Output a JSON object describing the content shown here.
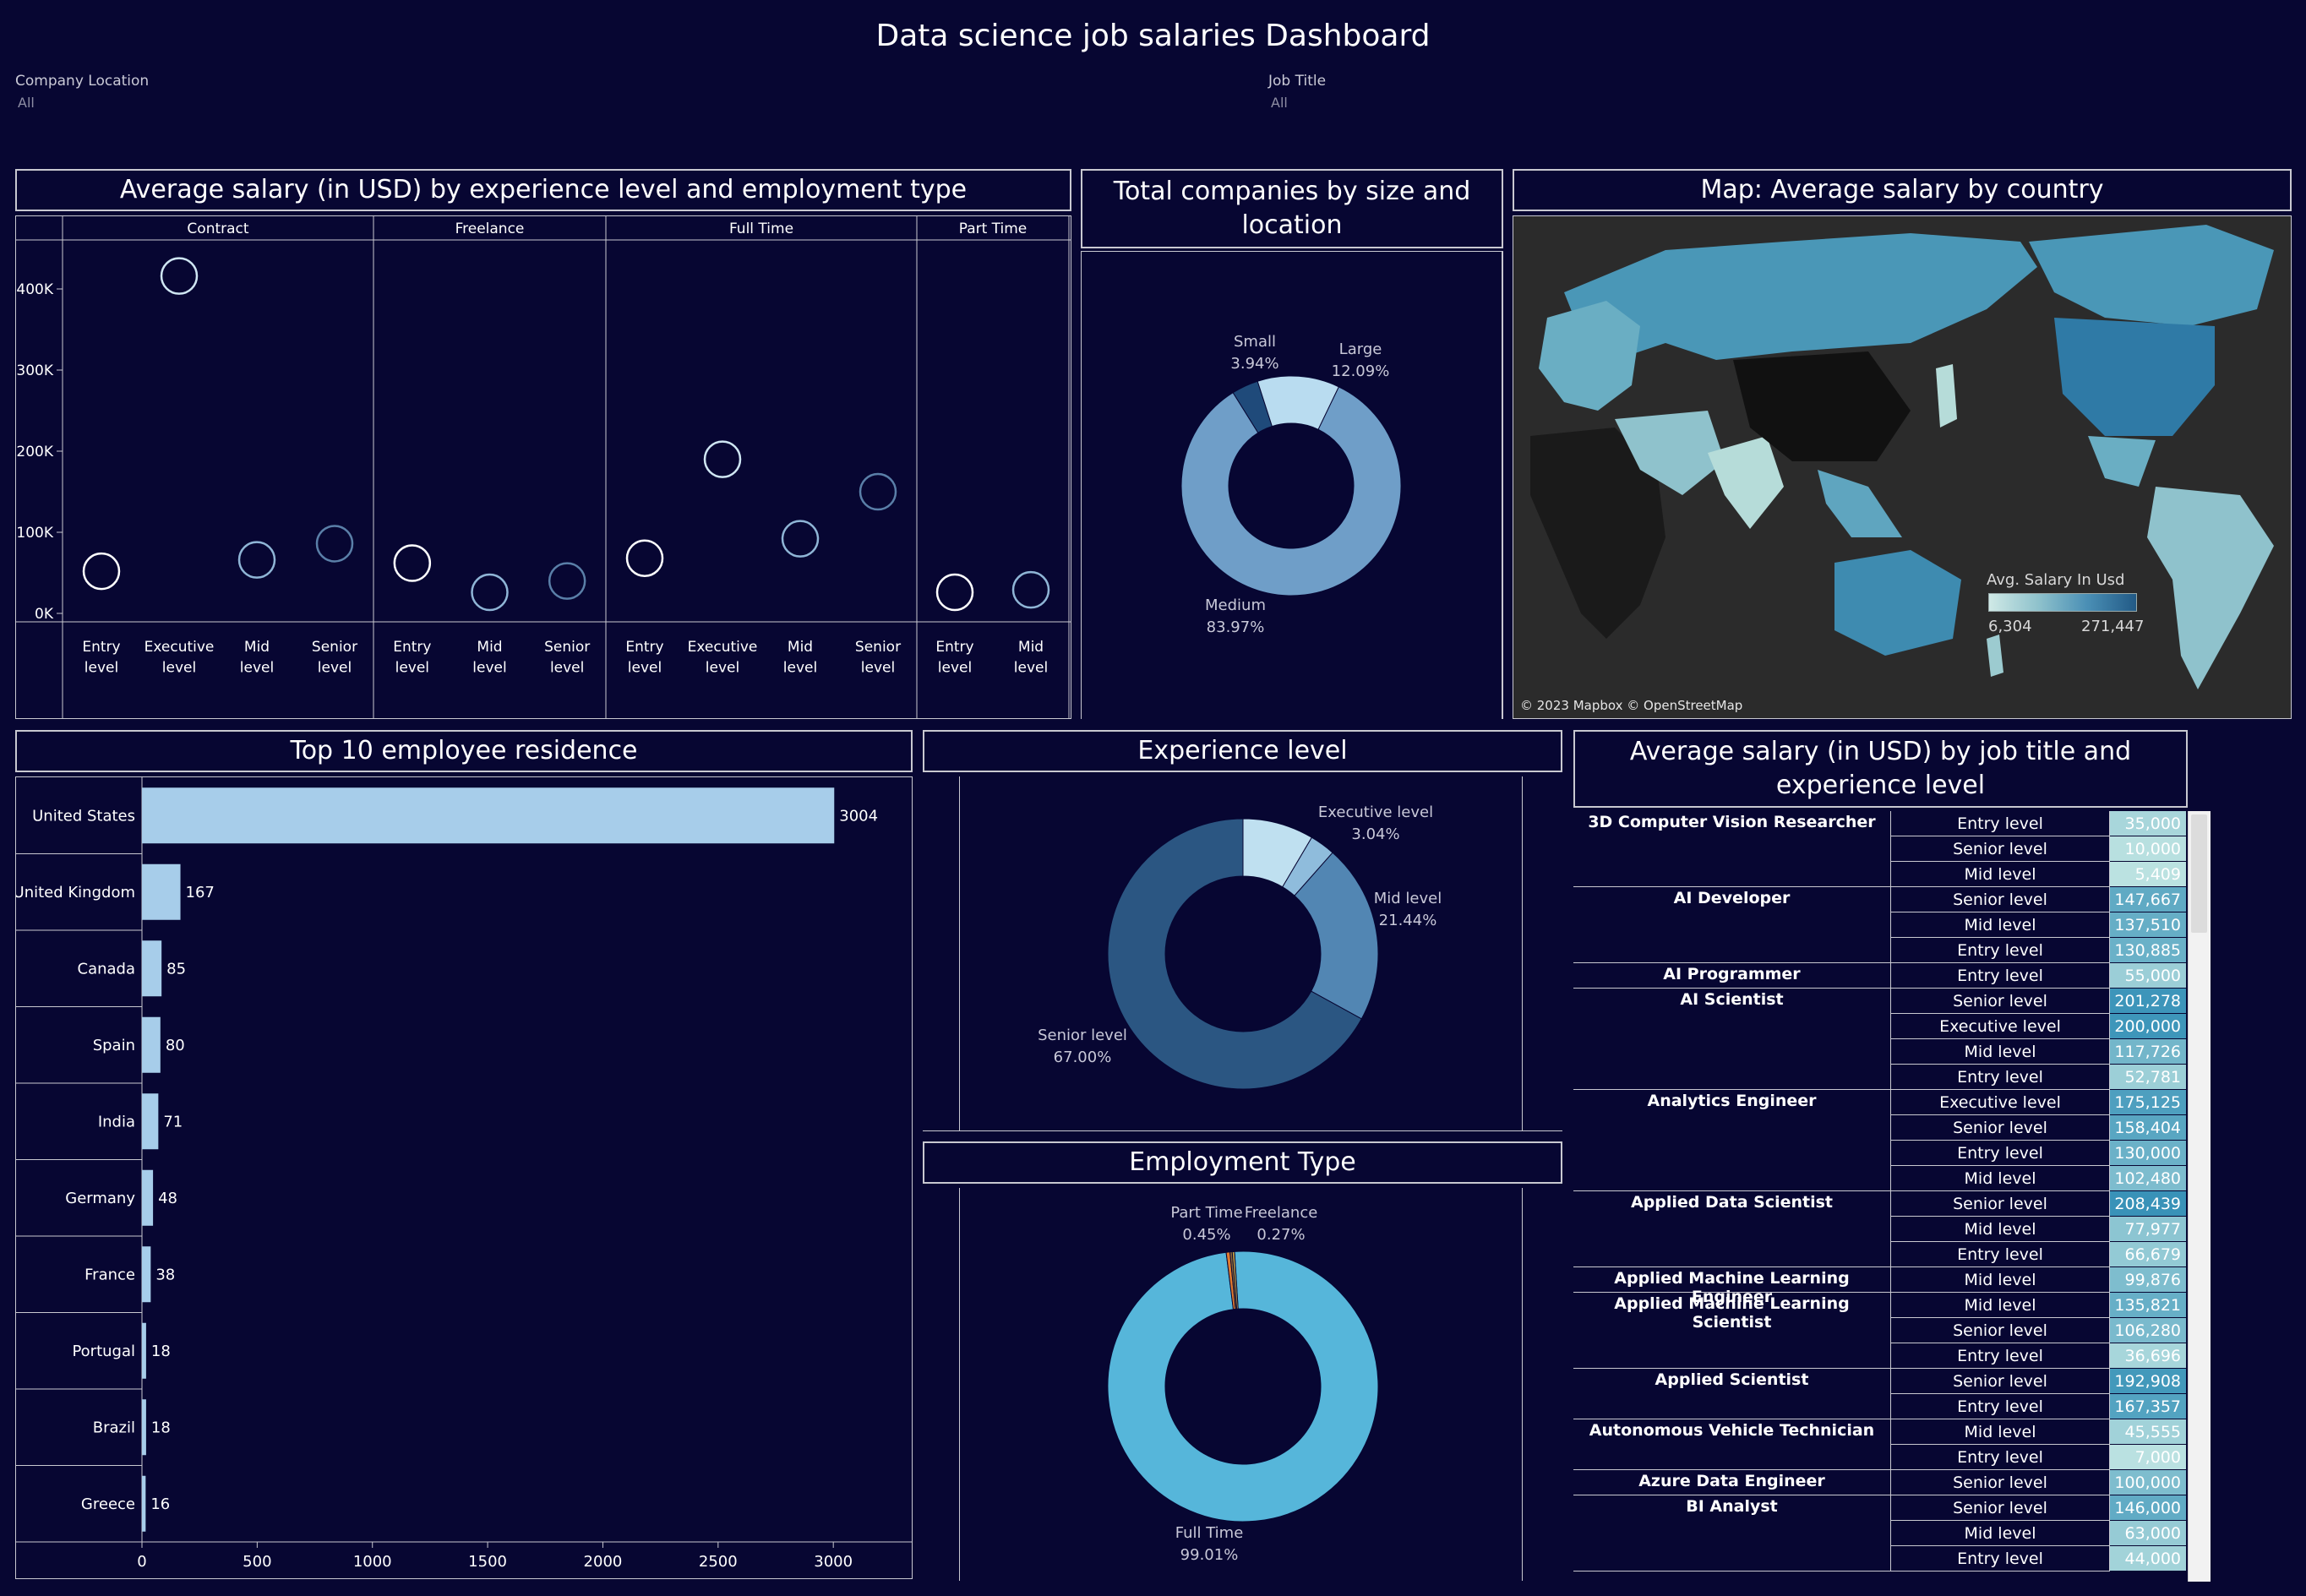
{
  "dashboard": {
    "title": "Data science job salaries Dashboard",
    "filters": [
      {
        "label": "Company Location",
        "value": "All"
      },
      {
        "label": "Job Title",
        "value": "All"
      }
    ]
  },
  "panels": {
    "scatter_title": "Average salary (in USD) by experience level and employment type",
    "donut_size_title": "Total companies by size and location",
    "map_title": "Map: Average salary by country",
    "residence_title": "Top 10 employee residence",
    "experience_title": "Experience level",
    "employment_title": "Employment Type",
    "jobtitle_title": "Average salary (in USD) by job title and experience level"
  },
  "map": {
    "legend_title": "Avg. Salary In Usd",
    "legend_min": "6,304",
    "legend_max": "271,447",
    "attribution": "© 2023 Mapbox © OpenStreetMap",
    "colors": {
      "low": "#cfe9e6",
      "high": "#225a86"
    }
  },
  "chart_data": [
    {
      "type": "scatter",
      "title": "Average salary (in USD) by experience level and employment type",
      "y_ticks": [
        "400K",
        "300K",
        "200K",
        "100K",
        "0K"
      ],
      "ylim": [
        0,
        450000
      ],
      "groups": [
        {
          "name": "Contract",
          "points": [
            {
              "label": "Entry level",
              "value": 52000
            },
            {
              "label": "Executive level",
              "value": 416000
            },
            {
              "label": "Mid level",
              "value": 66000
            },
            {
              "label": "Senior level",
              "value": 86000
            }
          ]
        },
        {
          "name": "Freelance",
          "points": [
            {
              "label": "Entry level",
              "value": 62000
            },
            {
              "label": "Mid level",
              "value": 26000
            },
            {
              "label": "Senior level",
              "value": 40000
            }
          ]
        },
        {
          "name": "Full Time",
          "points": [
            {
              "label": "Entry level",
              "value": 68000
            },
            {
              "label": "Executive level",
              "value": 190000
            },
            {
              "label": "Mid level",
              "value": 92000
            },
            {
              "label": "Senior level",
              "value": 150000
            }
          ]
        },
        {
          "name": "Part Time",
          "points": [
            {
              "label": "Entry level",
              "value": 26000
            },
            {
              "label": "Mid level",
              "value": 29000
            }
          ]
        }
      ]
    },
    {
      "type": "pie",
      "title": "Total companies by size and location",
      "slices": [
        {
          "label": "Small",
          "value": 3.94,
          "text": "3.94%",
          "color": "#1f4a7a"
        },
        {
          "label": "Large",
          "value": 12.09,
          "text": "12.09%",
          "color": "#b9dcf0"
        },
        {
          "label": "Medium",
          "value": 83.97,
          "text": "83.97%",
          "color": "#6f9ec8"
        }
      ]
    },
    {
      "type": "bar",
      "title": "Top 10 employee residence",
      "categories": [
        "United States",
        "United Kingdom",
        "Canada",
        "Spain",
        "India",
        "Germany",
        "France",
        "Portugal",
        "Brazil",
        "Greece"
      ],
      "values": [
        3004,
        167,
        85,
        80,
        71,
        48,
        38,
        18,
        18,
        16
      ],
      "x_ticks": [
        0,
        500,
        1000,
        1500,
        2000,
        2500,
        3000
      ],
      "xlim": [
        0,
        3300
      ],
      "color": "#a7cdea"
    },
    {
      "type": "pie",
      "title": "Experience level",
      "slices": [
        {
          "label": "Entry level",
          "value": 8.49,
          "text": "",
          "color": "#bfe0f0"
        },
        {
          "label": "Executive level",
          "value": 3.04,
          "text": "3.04%",
          "color": "#8fbcdc"
        },
        {
          "label": "Mid level",
          "value": 21.44,
          "text": "21.44%",
          "color": "#5286b3"
        },
        {
          "label": "Senior level",
          "value": 67.0,
          "text": "67.00%",
          "color": "#2b5682"
        }
      ]
    },
    {
      "type": "pie",
      "title": "Employment Type",
      "slices": [
        {
          "label": "Full Time",
          "value": 99.01,
          "text": "99.01%",
          "color": "#56b6da"
        },
        {
          "label": "Part Time",
          "value": 0.45,
          "text": "0.45%",
          "color": "#e07a2e"
        },
        {
          "label": "Freelance",
          "value": 0.27,
          "text": "0.27%",
          "color": "#8e6b3a"
        },
        {
          "label": "Contract",
          "value": 0.27,
          "text": "",
          "color": "#c9a646"
        }
      ]
    },
    {
      "type": "table",
      "title": "Average salary (in USD) by job title and experience level",
      "rows": [
        {
          "job": "3D Computer Vision Researcher",
          "levels": [
            [
              "Entry level",
              "35,000",
              35000
            ],
            [
              "Senior level",
              "10,000",
              10000
            ],
            [
              "Mid level",
              "5,409",
              5409
            ]
          ]
        },
        {
          "job": "AI Developer",
          "levels": [
            [
              "Senior level",
              "147,667",
              147667
            ],
            [
              "Mid level",
              "137,510",
              137510
            ],
            [
              "Entry level",
              "130,885",
              130885
            ]
          ]
        },
        {
          "job": "AI Programmer",
          "levels": [
            [
              "Entry level",
              "55,000",
              55000
            ]
          ]
        },
        {
          "job": "AI Scientist",
          "levels": [
            [
              "Senior level",
              "201,278",
              201278
            ],
            [
              "Executive level",
              "200,000",
              200000
            ],
            [
              "Mid level",
              "117,726",
              117726
            ],
            [
              "Entry level",
              "52,781",
              52781
            ]
          ]
        },
        {
          "job": "Analytics Engineer",
          "levels": [
            [
              "Executive level",
              "175,125",
              175125
            ],
            [
              "Senior level",
              "158,404",
              158404
            ],
            [
              "Entry level",
              "130,000",
              130000
            ],
            [
              "Mid level",
              "102,480",
              102480
            ]
          ]
        },
        {
          "job": "Applied Data Scientist",
          "levels": [
            [
              "Senior level",
              "208,439",
              208439
            ],
            [
              "Mid level",
              "77,977",
              77977
            ],
            [
              "Entry level",
              "66,679",
              66679
            ]
          ]
        },
        {
          "job": "Applied Machine Learning Engineer",
          "levels": [
            [
              "Mid level",
              "99,876",
              99876
            ]
          ]
        },
        {
          "job": "Applied Machine Learning Scientist",
          "levels": [
            [
              "Mid level",
              "135,821",
              135821
            ],
            [
              "Senior level",
              "106,280",
              106280
            ],
            [
              "Entry level",
              "36,696",
              36696
            ]
          ]
        },
        {
          "job": "Applied Scientist",
          "levels": [
            [
              "Senior level",
              "192,908",
              192908
            ],
            [
              "Entry level",
              "167,357",
              167357
            ]
          ]
        },
        {
          "job": "Autonomous Vehicle Technician",
          "levels": [
            [
              "Mid level",
              "45,555",
              45555
            ],
            [
              "Entry level",
              "7,000",
              7000
            ]
          ]
        },
        {
          "job": "Azure Data Engineer",
          "levels": [
            [
              "Senior level",
              "100,000",
              100000
            ]
          ]
        },
        {
          "job": "BI Analyst",
          "levels": [
            [
              "Senior level",
              "146,000",
              146000
            ],
            [
              "Mid level",
              "63,000",
              63000
            ],
            [
              "Entry level",
              "44,000",
              44000
            ]
          ]
        }
      ]
    }
  ]
}
